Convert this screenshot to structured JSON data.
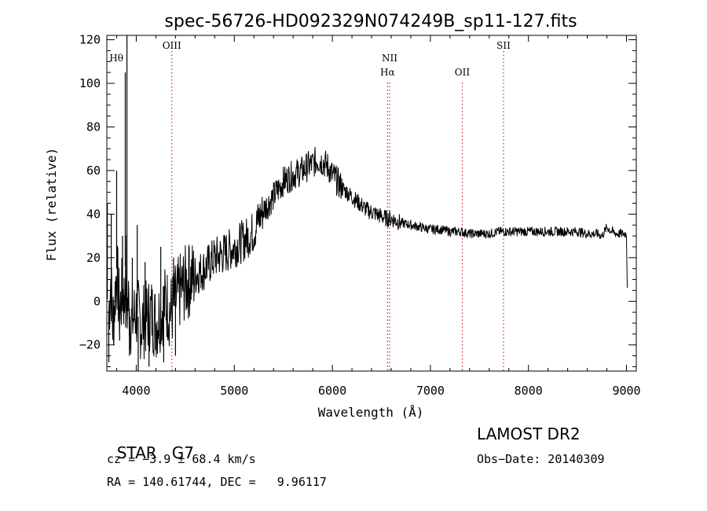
{
  "chart_data": {
    "type": "line",
    "title": "spec-56726-HD092329N074249B_sp11-127.fits",
    "xlabel": "Wavelength (Å)",
    "ylabel": "Flux (relative)",
    "xlim": [
      3700,
      9100
    ],
    "ylim": [
      -32,
      122
    ],
    "xticks": [
      4000,
      5000,
      6000,
      7000,
      8000,
      9000
    ],
    "yticks": [
      -20,
      0,
      20,
      40,
      60,
      80,
      100,
      120
    ],
    "ytick_labels": [
      "−20",
      "0",
      "20",
      "40",
      "60",
      "80",
      "100",
      "120"
    ],
    "grid": false,
    "series": [
      {
        "x": [
          3720,
          3740,
          3760,
          3780,
          3800,
          3830,
          3860,
          3880,
          3890,
          3900,
          3920,
          3950,
          4000,
          4050,
          4100,
          4150,
          4200,
          4250,
          4300,
          4350,
          4400,
          4450,
          4500,
          4550,
          4600,
          4700,
          4800,
          4900,
          5000,
          5100,
          5200,
          5250,
          5300,
          5400,
          5500,
          5600,
          5700,
          5750,
          5800,
          5850,
          5900,
          5950,
          6000,
          6050,
          6100,
          6150,
          6200,
          6250,
          6300,
          6350,
          6400,
          6450,
          6500,
          6550,
          6600,
          6650,
          6700,
          6800,
          6900,
          7000,
          7100,
          7200,
          7300,
          7400,
          7500,
          7600,
          7700,
          7800,
          7900,
          8000,
          8100,
          8200,
          8300,
          8400,
          8500,
          8600,
          8700,
          8750,
          8800,
          8850,
          8900,
          8950,
          9000,
          9010
        ],
        "y": [
          -5,
          10,
          -10,
          0,
          15,
          -5,
          5,
          0,
          20,
          -5,
          0,
          -10,
          -5,
          -10,
          -8,
          -5,
          -10,
          -5,
          0,
          -5,
          0,
          5,
          8,
          10,
          12,
          15,
          20,
          22,
          25,
          28,
          32,
          38,
          42,
          48,
          55,
          58,
          60,
          62,
          63,
          65,
          64,
          62,
          58,
          55,
          52,
          50,
          48,
          46,
          44,
          42,
          41,
          40,
          39,
          38,
          38,
          37,
          36,
          35,
          34,
          33,
          33,
          32,
          32,
          31,
          31,
          31,
          32,
          32,
          32,
          32,
          32,
          32,
          32,
          32,
          32,
          31,
          31,
          30,
          34,
          32,
          31,
          31,
          31,
          1
        ],
        "spikes": [
          {
            "x": 3705,
            "y": 45
          },
          {
            "x": 3720,
            "y": -28
          },
          {
            "x": 3745,
            "y": 40
          },
          {
            "x": 3770,
            "y": -20
          },
          {
            "x": 3800,
            "y": 60
          },
          {
            "x": 3830,
            "y": -18
          },
          {
            "x": 3860,
            "y": 30
          },
          {
            "x": 3888,
            "y": 105
          },
          {
            "x": 3892,
            "y": -12
          },
          {
            "x": 3905,
            "y": 122
          },
          {
            "x": 3930,
            "y": -25
          },
          {
            "x": 3960,
            "y": 20
          },
          {
            "x": 4000,
            "y": -15
          },
          {
            "x": 4010,
            "y": 35
          },
          {
            "x": 4020,
            "y": -32
          },
          {
            "x": 4090,
            "y": 18
          },
          {
            "x": 4130,
            "y": -30
          },
          {
            "x": 4250,
            "y": 25
          },
          {
            "x": 4280,
            "y": -28
          },
          {
            "x": 4380,
            "y": 20
          },
          {
            "x": 4400,
            "y": -25
          },
          {
            "x": 4540,
            "y": 25
          }
        ]
      }
    ],
    "annotations": [
      {
        "label": "Hθ",
        "x": 3797,
        "line": false,
        "row": 0
      },
      {
        "label": "OIII",
        "x": 4363,
        "line": true,
        "row": -1
      },
      {
        "label": "NII",
        "x": 6584,
        "line": true,
        "row": 0
      },
      {
        "label": "Hα",
        "x": 6563,
        "line": true,
        "row": 1
      },
      {
        "label": "OII",
        "x": 7325,
        "line": true,
        "row": 1
      },
      {
        "label": "SII",
        "x": 7746,
        "line": true,
        "row": -1
      }
    ]
  },
  "info": {
    "class_label": "STAR",
    "subclass": "G7",
    "survey": "LAMOST DR2",
    "cz": "cz = −3.9 ± 68.4 km/s",
    "obs_date": "Obs−Date: 20140309",
    "radec": "RA = 140.61744, DEC =   9.96117"
  }
}
